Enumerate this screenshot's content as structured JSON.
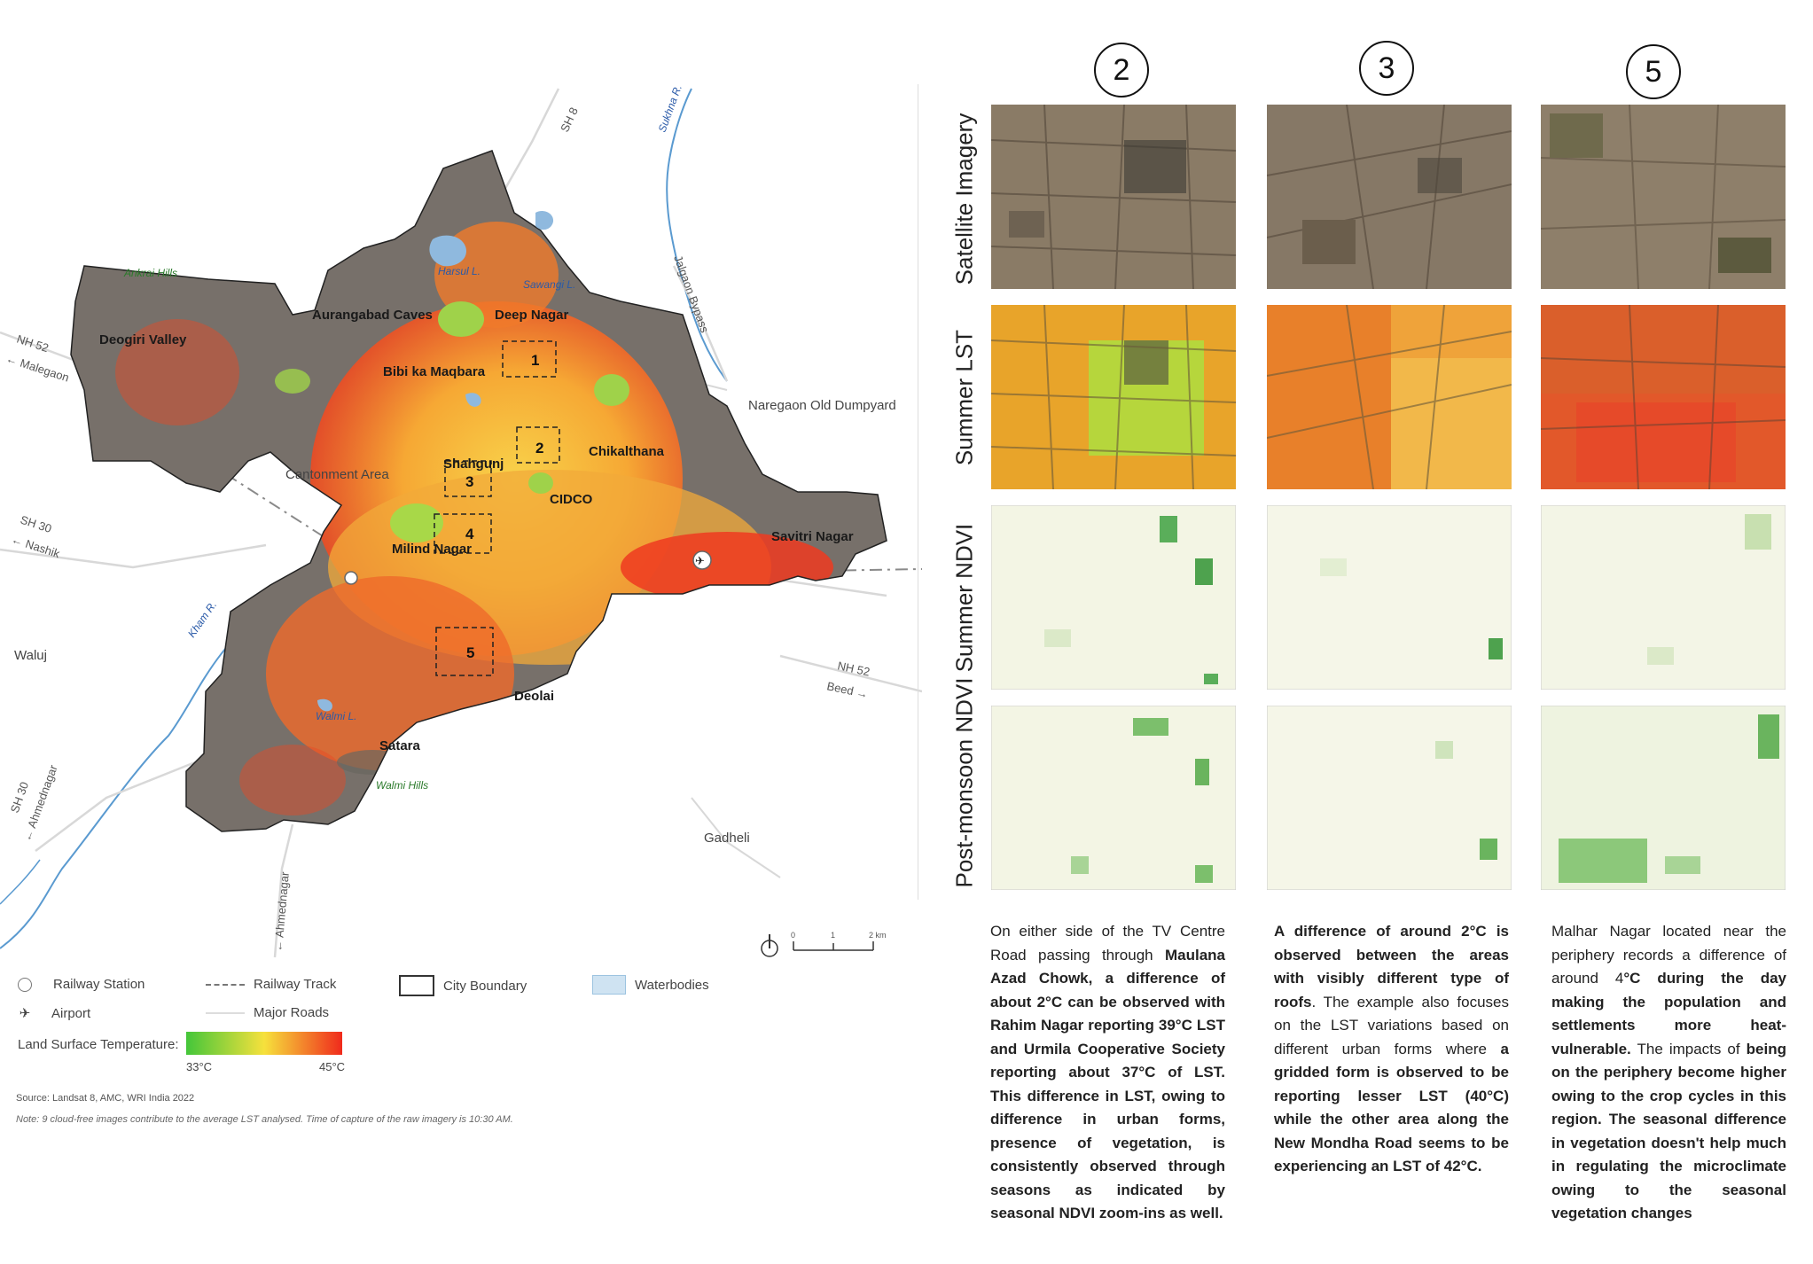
{
  "map": {
    "places": {
      "deep_nagar": "Deep Nagar",
      "deogiri_valley": "Deogiri Valley",
      "aurangabad_caves": "Aurangabad Caves",
      "bibi_ka_maqbara": "Bibi ka Maqbara",
      "shahgunj": "Shahgunj",
      "chikalthana": "Chikalthana",
      "cidco": "CIDCO",
      "milind_nagar": "Milind Nagar",
      "savitri_nagar": "Savitri Nagar",
      "deolai": "Deolai",
      "satara": "Satara",
      "cantonment": "Cantonment Area",
      "waluj": "Waluj",
      "gadheli": "Gadheli",
      "naregaon": "Naregaon Old Dumpyard"
    },
    "water": {
      "harsul": "Harsul L.",
      "sawangi": "Sawangi L.",
      "walmi": "Walmi L.",
      "kham": "Kham R.",
      "sukhna": "Sukhna R."
    },
    "hills": {
      "ankrai": "Ankrai Hills",
      "walmi": "Walmi Hills"
    },
    "roads": {
      "nh52_w": "NH 52",
      "malegaon": "← Malegaon",
      "sh30_w": "SH 30",
      "nashik": "← Nashik",
      "sh8": "SH 8",
      "jalgaon": "Jalgaon Bypass",
      "nh52_e": "NH 52",
      "beed": "Beed →",
      "sh30_s": "SH 30",
      "ahmednagar_sw": "← Ahmednagar",
      "ahmednagar_s": "← Ahmednagar"
    },
    "boxes": [
      "1",
      "2",
      "3",
      "4",
      "5"
    ],
    "scale": {
      "zero": "0",
      "one": "1",
      "two": "2 km"
    }
  },
  "legend": {
    "railway_station": "Railway Station",
    "airport": "Airport",
    "railway_track": "Railway Track",
    "major_roads": "Major Roads",
    "city_boundary": "City Boundary",
    "waterbodies": "Waterbodies",
    "lst_title": "Land Surface Temperature:",
    "lst_min": "33°C",
    "lst_max": "45°C",
    "colors": {
      "low": "#44c63a",
      "mid": "#f6e13c",
      "high": "#f02a1c"
    }
  },
  "source": "Source: Landsat 8, AMC, WRI India 2022",
  "note": "Note: 9 cloud-free images contribute to the average LST analysed. Time of capture of the raw imagery is 10:30 AM.",
  "columns": [
    "2",
    "3",
    "5"
  ],
  "rows": [
    "Satellite Imagery",
    "Summer LST",
    "Summer NDVI",
    "Post-monsoon NDVI"
  ],
  "descriptions": {
    "c2": {
      "t1": "On either side of the TV Centre Road passing through ",
      "b1": "Maulana Azad Chowk, a difference of about 2°C can be observed with Rahim Nagar reporting 39°C LST and Urmila Cooperative Society reporting about 37°C of LST. This difference in LST, owing to difference in urban forms, presence of vegetation, is consistently observed through seasons as indicated by seasonal NDVI zoom-ins as well."
    },
    "c3": {
      "b1": "A difference of around 2°C is observed between the areas with visibly different type of roofs",
      "t1": ". The example also focuses on the LST variations based on different urban forms where ",
      "b2": "a gridded form is observed to be reporting lesser LST (40°C) while the other area along the New Mondha Road seems to be experiencing an LST of 42°C."
    },
    "c5": {
      "t1": "Malhar Nagar located near the periphery records a difference of around 4",
      "b1": "°C during the day making the population and settlements more heat-vulnerable.",
      "t2": " The impacts of ",
      "b2": "being on the periphery become higher owing to the crop cycles in this region. The seasonal difference in vegetation doesn't help much in regulating the microclimate owing to the seasonal vegetation changes"
    }
  }
}
